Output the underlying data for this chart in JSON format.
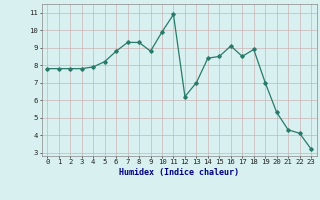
{
  "x": [
    0,
    1,
    2,
    3,
    4,
    5,
    6,
    7,
    8,
    9,
    10,
    11,
    12,
    13,
    14,
    15,
    16,
    17,
    18,
    19,
    20,
    21,
    22,
    23
  ],
  "y": [
    7.8,
    7.8,
    7.8,
    7.8,
    7.9,
    8.2,
    8.8,
    9.3,
    9.3,
    8.8,
    9.9,
    10.9,
    6.2,
    7.0,
    8.4,
    8.5,
    9.1,
    8.5,
    8.9,
    7.0,
    5.3,
    4.3,
    4.1,
    3.2
  ],
  "xlim": [
    -0.5,
    23.5
  ],
  "ylim": [
    2.8,
    11.5
  ],
  "xlabel": "Humidex (Indice chaleur)",
  "xticks": [
    0,
    1,
    2,
    3,
    4,
    5,
    6,
    7,
    8,
    9,
    10,
    11,
    12,
    13,
    14,
    15,
    16,
    17,
    18,
    19,
    20,
    21,
    22,
    23
  ],
  "yticks": [
    3,
    4,
    5,
    6,
    7,
    8,
    9,
    10,
    11
  ],
  "line_color": "#2a7a6a",
  "marker": "D",
  "marker_size": 1.8,
  "bg_color": "#d8f0f0",
  "grid_color_v": "#c8a8a8",
  "grid_color_h": "#c8a8a8",
  "xlabel_color": "#000080",
  "xlabel_fontsize": 6.0,
  "tick_fontsize": 5.2,
  "linewidth": 0.9
}
